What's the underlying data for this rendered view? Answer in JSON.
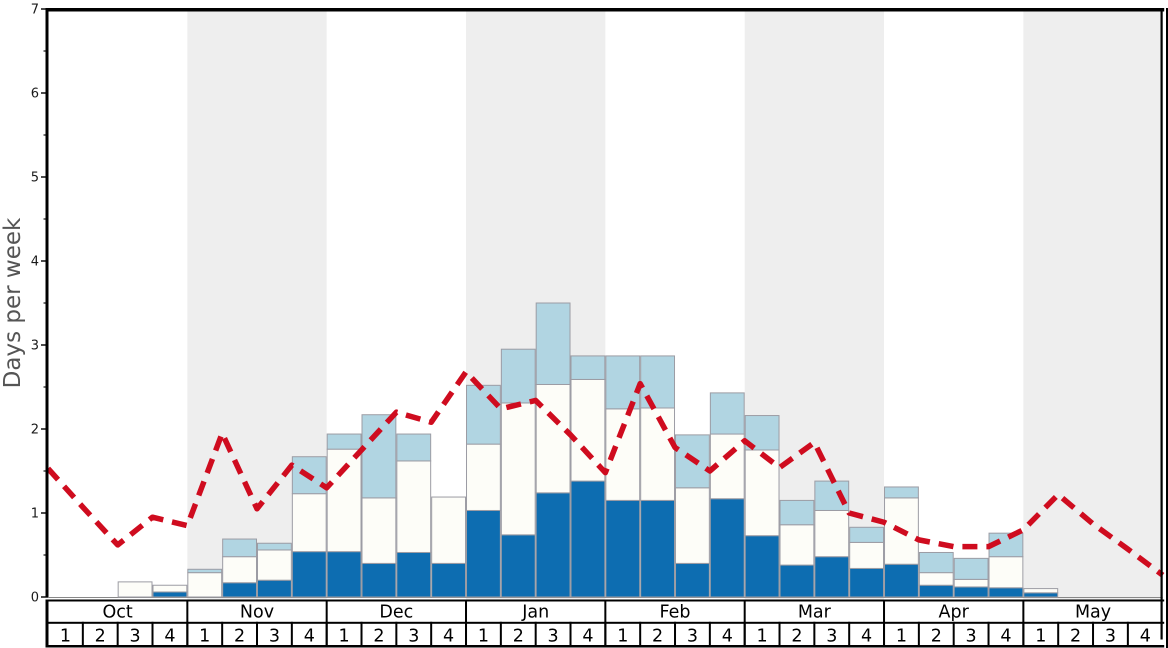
{
  "chart_data": {
    "type": "stacked_bar_with_line",
    "title": "",
    "ylabel": "Days per week",
    "ylim": [
      0,
      7
    ],
    "ytick_labels": [
      "0",
      "1",
      "2",
      "3",
      "4",
      "5",
      "6",
      "7"
    ],
    "minor_tick_step": 0.5,
    "grid": "off",
    "legend": "none",
    "months": [
      "Oct",
      "Nov",
      "Dec",
      "Jan",
      "Feb",
      "Mar",
      "Apr",
      "May"
    ],
    "week_labels": [
      "1",
      "2",
      "3",
      "4"
    ],
    "shaded_month_indices": [
      1,
      3,
      5,
      7
    ],
    "weeks_per_month": 4,
    "series": [
      {
        "name": "dark-blue-days",
        "stack_role": "bottom",
        "values": [
          0,
          0,
          0,
          0.06,
          0,
          0.17,
          0.2,
          0.54,
          0.54,
          0.4,
          0.53,
          0.4,
          1.03,
          0.74,
          1.24,
          1.38,
          1.15,
          1.15,
          0.4,
          1.17,
          0.73,
          0.38,
          0.48,
          0.34,
          0.39,
          0.14,
          0.12,
          0.11,
          0.05,
          0,
          0,
          0
        ]
      },
      {
        "name": "white-days",
        "stack_role": "middle-cumulative-top",
        "values": [
          0,
          0,
          0.18,
          0.14,
          0.29,
          0.48,
          0.56,
          1.23,
          1.76,
          1.18,
          1.62,
          1.19,
          1.82,
          2.31,
          2.53,
          2.59,
          2.24,
          2.25,
          1.3,
          1.94,
          1.75,
          0.86,
          1.03,
          0.65,
          1.18,
          0.29,
          0.21,
          0.48,
          0.1,
          0,
          0,
          0
        ]
      },
      {
        "name": "light-blue-days",
        "stack_role": "top-cumulative-top",
        "values": [
          0,
          0,
          0.18,
          0.14,
          0.33,
          0.69,
          0.64,
          1.67,
          1.94,
          2.17,
          1.94,
          1.19,
          2.52,
          2.95,
          3.5,
          2.87,
          2.87,
          2.87,
          1.93,
          2.43,
          2.16,
          1.15,
          1.38,
          0.83,
          1.31,
          0.53,
          0.46,
          0.76,
          0.1,
          0,
          0,
          0
        ]
      }
    ],
    "line": {
      "name": "red-dashed-trend",
      "style": "dashed",
      "points_at": "week-start-boundaries-plus-right-edge",
      "values": [
        1.53,
        1.07,
        0.62,
        0.95,
        0.85,
        1.95,
        1.05,
        1.57,
        1.3,
        1.75,
        2.2,
        2.08,
        2.68,
        2.24,
        2.34,
        1.93,
        1.48,
        2.54,
        1.78,
        1.5,
        1.86,
        1.54,
        1.84,
        1.0,
        0.89,
        0.68,
        0.6,
        0.6,
        0.8,
        1.22,
        0.87,
        0.57,
        0.26
      ]
    }
  },
  "colors": {
    "dark_blue": "#0d6db1",
    "bar_white": "#fdfdf8",
    "light_blue": "#b1d5e2",
    "bar_border": "#9c9ca4",
    "red_line": "#cf0c1f",
    "shaded_band": "#eeeeee",
    "axis_black": "#000000",
    "zero_line": "#888888",
    "tick_text": "#1a1a1a",
    "ylabel_text": "#555555",
    "table_text": "#000000"
  }
}
